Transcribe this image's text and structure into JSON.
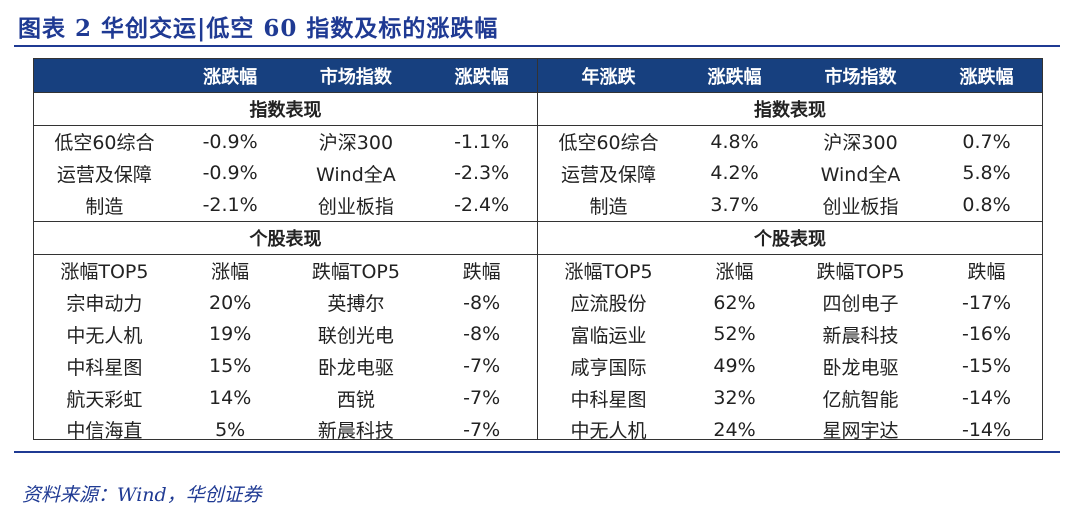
{
  "title": "图表 2   华创交运|低空 60 指数及标的涨跌幅",
  "source": "资料来源：Wind，华创证券",
  "colors": {
    "header_bg": "#17407f",
    "title": "#1f3a93",
    "rule": "#1f3a93"
  },
  "left": {
    "header": [
      "",
      "涨跌幅",
      "市场指数",
      "涨跌幅"
    ],
    "section_index": "指数表现",
    "index_rows": [
      [
        "低空60综合",
        "-0.9%",
        "沪深300",
        "-1.1%"
      ],
      [
        "运营及保障",
        "-0.9%",
        "Wind全A",
        "-2.3%"
      ],
      [
        "制造",
        "-2.1%",
        "创业板指",
        "-2.4%"
      ]
    ],
    "section_stock": "个股表现",
    "stock_header": [
      "涨幅TOP5",
      "涨幅",
      "跌幅TOP5",
      "跌幅"
    ],
    "stock_rows": [
      [
        "宗申动力",
        "20%",
        "英搏尔",
        "-8%"
      ],
      [
        "中无人机",
        "19%",
        "联创光电",
        "-8%"
      ],
      [
        "中科星图",
        "15%",
        "卧龙电驱",
        "-7%"
      ],
      [
        "航天彩虹",
        "14%",
        "西锐",
        "-7%"
      ],
      [
        "中信海直",
        "5%",
        "新晨科技",
        "-7%"
      ]
    ]
  },
  "right": {
    "header": [
      "年涨跌",
      "涨跌幅",
      "市场指数",
      "涨跌幅"
    ],
    "section_index": "指数表现",
    "index_rows": [
      [
        "低空60综合",
        "4.8%",
        "沪深300",
        "0.7%"
      ],
      [
        "运营及保障",
        "4.2%",
        "Wind全A",
        "5.8%"
      ],
      [
        "制造",
        "3.7%",
        "创业板指",
        "0.8%"
      ]
    ],
    "section_stock": "个股表现",
    "stock_header": [
      "涨幅TOP5",
      "涨幅",
      "跌幅TOP5",
      "跌幅"
    ],
    "stock_rows": [
      [
        "应流股份",
        "62%",
        "四创电子",
        "-17%"
      ],
      [
        "富临运业",
        "52%",
        "新晨科技",
        "-16%"
      ],
      [
        "咸亨国际",
        "49%",
        "卧龙电驱",
        "-15%"
      ],
      [
        "中科星图",
        "32%",
        "亿航智能",
        "-14%"
      ],
      [
        "中无人机",
        "24%",
        "星网宇达",
        "-14%"
      ]
    ]
  }
}
